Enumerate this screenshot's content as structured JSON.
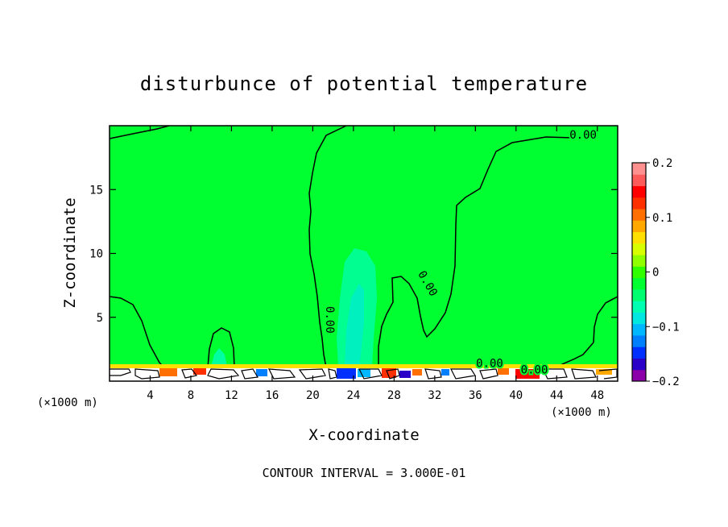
{
  "chart_data": {
    "type": "heatmap",
    "title": "disturbunce of potential temperature",
    "xlabel": "X-coordinate",
    "ylabel": "Z-coordinate",
    "x_unit_left": "(×1000 m)",
    "x_unit_right": "(×1000 m)",
    "xlim": [
      0,
      50
    ],
    "ylim": [
      0,
      20
    ],
    "x_ticks": [
      4,
      8,
      12,
      16,
      20,
      24,
      28,
      32,
      36,
      40,
      44,
      48
    ],
    "y_ticks": [
      5,
      10,
      15
    ],
    "colorbar": {
      "min": -0.2,
      "max": 0.2,
      "tick_values": [
        0.2,
        0.1,
        0,
        -0.1,
        -0.2
      ],
      "tick_labels": [
        "0.2",
        "0.1",
        "0",
        "−0.1",
        "−0.2"
      ],
      "colors": [
        "#8b00a8",
        "#2a00c8",
        "#0030ff",
        "#0080ff",
        "#00b8ff",
        "#00e8e0",
        "#00ffb0",
        "#00ff70",
        "#00ff30",
        "#30ff00",
        "#90ff00",
        "#d8ff00",
        "#ffe000",
        "#ffa800",
        "#ff7000",
        "#ff3000",
        "#ff0000",
        "#ff5a5a",
        "#ff9090"
      ]
    },
    "contour_labels": [
      {
        "text": "0.00",
        "x": 46.6,
        "y": 19.0
      },
      {
        "text": "0.00",
        "x": 21.3,
        "y": 4.8,
        "rotate": 90
      },
      {
        "text": "0.00",
        "x": 31.0,
        "y": 7.5,
        "rotate": 60
      },
      {
        "text": "0.00",
        "x": 37.4,
        "y": 1.1
      },
      {
        "text": "0.00",
        "x": 41.8,
        "y": 0.6
      }
    ],
    "contour_interval_text": "CONTOUR INTERVAL = 3.000E-01"
  },
  "colors": {
    "background_field": "#00ff30",
    "weak_negative": "#00ff90",
    "moderate_negative": "#00f0c0",
    "contour_line": "#000000"
  }
}
